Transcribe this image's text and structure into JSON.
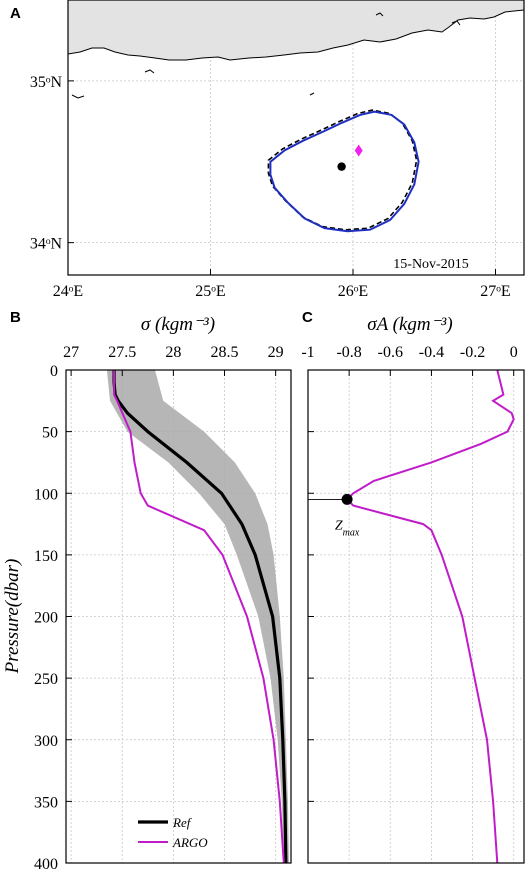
{
  "colors": {
    "land": "#e3e3e3",
    "eddy_boundary": "#1f2fbf",
    "ref_line": "#000000",
    "argo_line": "#c01cc9",
    "envelope": "#a9a9a9",
    "argo_marker": "#ee22ee"
  },
  "chart_data": [
    {
      "panel": "A",
      "type": "map",
      "date_label": "15-Nov-2015",
      "x_ticks": [
        {
          "lon": 24,
          "label": "24ᵒE"
        },
        {
          "lon": 25,
          "label": "25ᵒE"
        },
        {
          "lon": 26,
          "label": "26ᵒE"
        },
        {
          "lon": 27,
          "label": "27ᵒE"
        }
      ],
      "y_ticks": [
        {
          "lat": 34,
          "label": "34ᵒN"
        },
        {
          "lat": 35,
          "label": "35ᵒN"
        }
      ],
      "xlim": [
        24,
        27.2
      ],
      "ylim": [
        33.8,
        35.5
      ],
      "eddy_center": {
        "lon": 25.92,
        "lat": 34.47
      },
      "argo_position": {
        "lon": 26.04,
        "lat": 34.57
      },
      "eddy_boundary": [
        [
          25.42,
          34.5
        ],
        [
          25.52,
          34.57
        ],
        [
          25.65,
          34.63
        ],
        [
          25.8,
          34.69
        ],
        [
          25.92,
          34.74
        ],
        [
          26.05,
          34.79
        ],
        [
          26.15,
          34.81
        ],
        [
          26.27,
          34.79
        ],
        [
          26.36,
          34.73
        ],
        [
          26.43,
          34.62
        ],
        [
          26.46,
          34.5
        ],
        [
          26.43,
          34.36
        ],
        [
          26.36,
          34.24
        ],
        [
          26.26,
          34.14
        ],
        [
          26.12,
          34.08
        ],
        [
          25.96,
          34.07
        ],
        [
          25.8,
          34.09
        ],
        [
          25.66,
          34.15
        ],
        [
          25.54,
          34.25
        ],
        [
          25.45,
          34.34
        ],
        [
          25.42,
          34.42
        ]
      ],
      "grid": true
    },
    {
      "panel": "B",
      "type": "line",
      "xlabel": "σ (kgm⁻³)",
      "ylabel": "Pressure(dbar)",
      "xlim": [
        26.95,
        29.15
      ],
      "ylim": [
        0,
        400
      ],
      "x_ticks": [
        {
          "v": 27,
          "label": "27"
        },
        {
          "v": 27.5,
          "label": "27.5"
        },
        {
          "v": 28,
          "label": "28"
        },
        {
          "v": 28.5,
          "label": "28.5"
        },
        {
          "v": 29,
          "label": "29"
        }
      ],
      "y_ticks": [
        {
          "v": 0,
          "label": "0"
        },
        {
          "v": 50,
          "label": "50"
        },
        {
          "v": 100,
          "label": "100"
        },
        {
          "v": 150,
          "label": "150"
        },
        {
          "v": 200,
          "label": "200"
        },
        {
          "v": 250,
          "label": "250"
        },
        {
          "v": 300,
          "label": "300"
        },
        {
          "v": 350,
          "label": "350"
        },
        {
          "v": 400,
          "label": "400"
        }
      ],
      "legend_position": "bottom-right",
      "grid": true,
      "envelope": {
        "pressure": [
          0,
          25,
          50,
          75,
          100,
          125,
          150,
          200,
          250,
          300,
          350,
          400
        ],
        "lower": [
          27.35,
          27.38,
          27.55,
          27.95,
          28.25,
          28.5,
          28.62,
          28.83,
          28.95,
          29.02,
          29.06,
          29.08
        ],
        "upper": [
          27.82,
          27.9,
          28.3,
          28.6,
          28.8,
          28.92,
          28.98,
          29.04,
          29.08,
          29.1,
          29.12,
          29.13
        ]
      },
      "series": [
        {
          "name": "Ref",
          "pressure": [
            0,
            10,
            20,
            25,
            35,
            50,
            75,
            100,
            125,
            150,
            200,
            250,
            300,
            350,
            400
          ],
          "values": [
            27.42,
            27.42,
            27.43,
            27.46,
            27.55,
            27.75,
            28.13,
            28.47,
            28.67,
            28.8,
            28.97,
            29.04,
            29.07,
            29.09,
            29.1
          ]
        },
        {
          "name": "ARGO",
          "pressure": [
            0,
            20,
            25,
            50,
            75,
            100,
            110,
            130,
            150,
            200,
            250,
            300,
            350,
            400
          ],
          "values": [
            27.42,
            27.42,
            27.45,
            27.58,
            27.62,
            27.68,
            27.75,
            28.3,
            28.48,
            28.72,
            28.88,
            28.98,
            29.04,
            29.08
          ]
        }
      ]
    },
    {
      "panel": "C",
      "type": "line",
      "xlabel": "σA (kgm⁻³)",
      "xlim": [
        -1,
        0.05
      ],
      "ylim": [
        0,
        400
      ],
      "x_ticks": [
        {
          "v": -1,
          "label": "-1"
        },
        {
          "v": -0.8,
          "label": "-0.8"
        },
        {
          "v": -0.6,
          "label": "-0.6"
        },
        {
          "v": -0.4,
          "label": "-0.4"
        },
        {
          "v": -0.2,
          "label": "-0.2"
        },
        {
          "v": 0,
          "label": "0"
        }
      ],
      "grid": true,
      "zmax": {
        "label": "Zmax",
        "label_main": "Z",
        "label_sub": "max",
        "value": -0.81,
        "pressure": 105
      },
      "series": [
        {
          "pressure": [
            0,
            20,
            25,
            35,
            40,
            50,
            60,
            75,
            90,
            100,
            105,
            110,
            125,
            130,
            150,
            175,
            200,
            250,
            300,
            350,
            400
          ],
          "values": [
            -0.08,
            -0.05,
            -0.1,
            -0.01,
            0.0,
            -0.03,
            -0.16,
            -0.4,
            -0.68,
            -0.78,
            -0.81,
            -0.78,
            -0.44,
            -0.4,
            -0.35,
            -0.3,
            -0.25,
            -0.19,
            -0.13,
            -0.1,
            -0.08
          ]
        }
      ]
    }
  ],
  "panel_labels": [
    "A",
    "B",
    "C"
  ]
}
